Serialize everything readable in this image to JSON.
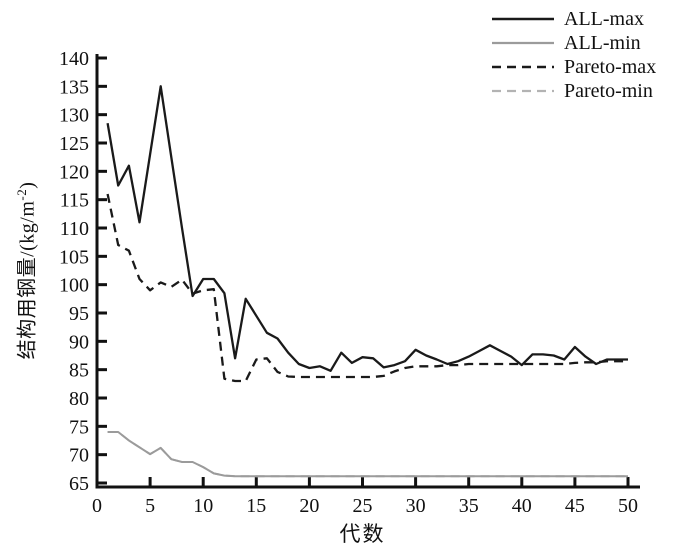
{
  "figure": {
    "background": "#ffffff",
    "axis_color": "#111111"
  },
  "chart_data": {
    "type": "line",
    "title": "",
    "xlabel": "代数",
    "ylabel": "结构用钢量/(kg/m⁻²)",
    "ylabel_parts": {
      "prefix": "结构用钢量/(kg/m",
      "superscript": "-2",
      "suffix": ")"
    },
    "xlim": [
      0,
      50
    ],
    "ylim": [
      65,
      140
    ],
    "x_ticks": [
      0,
      5,
      10,
      15,
      20,
      25,
      30,
      35,
      40,
      45,
      50
    ],
    "y_ticks": [
      65,
      70,
      75,
      80,
      85,
      90,
      95,
      100,
      105,
      110,
      115,
      120,
      125,
      130,
      135,
      140
    ],
    "grid": false,
    "legend_position": "top-right",
    "x": [
      1,
      2,
      3,
      4,
      5,
      6,
      7,
      8,
      9,
      10,
      11,
      12,
      13,
      14,
      15,
      16,
      17,
      18,
      19,
      20,
      21,
      22,
      23,
      24,
      25,
      26,
      27,
      28,
      29,
      30,
      31,
      32,
      33,
      34,
      35,
      36,
      37,
      38,
      39,
      40,
      41,
      42,
      43,
      44,
      45,
      46,
      47,
      48,
      49,
      50
    ],
    "series": [
      {
        "name": "ALL-max",
        "color": "#1a1a1a",
        "style": "solid",
        "width": 2.3,
        "values": [
          128.5,
          117.5,
          121,
          111,
          123,
          135,
          122.5,
          110,
          98,
          101,
          101,
          98.5,
          87,
          97.5,
          94.5,
          91.5,
          90.5,
          88,
          86,
          85.3,
          85.6,
          84.8,
          88,
          86.2,
          87.2,
          87,
          85.4,
          85.8,
          86.5,
          88.5,
          87.5,
          86.8,
          86,
          86.5,
          87.3,
          88.3,
          89.3,
          88.3,
          87.3,
          85.8,
          87.7,
          87.7,
          87.5,
          86.8,
          89,
          87.3,
          86,
          86.8,
          86.8,
          86.8
        ]
      },
      {
        "name": "ALL-min",
        "color": "#9b9b9b",
        "style": "solid",
        "width": 2,
        "values": [
          74,
          74,
          72.5,
          71.3,
          70.1,
          71.2,
          69.2,
          68.7,
          68.7,
          67.8,
          66.7,
          66.3,
          66.2,
          66.2,
          66.2,
          66.2,
          66.2,
          66.2,
          66.2,
          66.2,
          66.2,
          66.2,
          66.2,
          66.2,
          66.2,
          66.2,
          66.2,
          66.2,
          66.2,
          66.2,
          66.2,
          66.2,
          66.2,
          66.2,
          66.2,
          66.2,
          66.2,
          66.2,
          66.2,
          66.2,
          66.2,
          66.2,
          66.2,
          66.2,
          66.2,
          66.2,
          66.2,
          66.2,
          66.2,
          66.2
        ]
      },
      {
        "name": "Pareto-max",
        "color": "#1a1a1a",
        "style": "dashed",
        "width": 2.3,
        "values": [
          116,
          107,
          106,
          101,
          99,
          100.4,
          99.6,
          100.9,
          98.4,
          99,
          99.2,
          83.4,
          83,
          83,
          86.8,
          87,
          84.6,
          83.8,
          83.7,
          83.7,
          83.7,
          83.7,
          83.7,
          83.7,
          83.7,
          83.7,
          83.9,
          84.7,
          85.3,
          85.6,
          85.6,
          85.6,
          85.8,
          85.8,
          86,
          86,
          86,
          86,
          86,
          86,
          86,
          86,
          86,
          86,
          86.2,
          86.3,
          86.3,
          86.5,
          86.5,
          86.5
        ]
      },
      {
        "name": "Pareto-min",
        "color": "#b3b3b3",
        "style": "dashed",
        "width": 2,
        "values": [
          74,
          74,
          72.5,
          71.3,
          70.1,
          71.2,
          69.2,
          68.7,
          68.7,
          67.8,
          66.7,
          66.3,
          66.2,
          66.2,
          66.2,
          66.2,
          66.2,
          66.2,
          66.2,
          66.2,
          66.2,
          66.2,
          66.2,
          66.2,
          66.2,
          66.2,
          66.2,
          66.2,
          66.2,
          66.2,
          66.2,
          66.2,
          66.2,
          66.2,
          66.2,
          66.2,
          66.2,
          66.2,
          66.2,
          66.2,
          66.2,
          66.2,
          66.2,
          66.2,
          66.2,
          66.2,
          66.2,
          66.2,
          66.2,
          66.2
        ]
      }
    ]
  }
}
